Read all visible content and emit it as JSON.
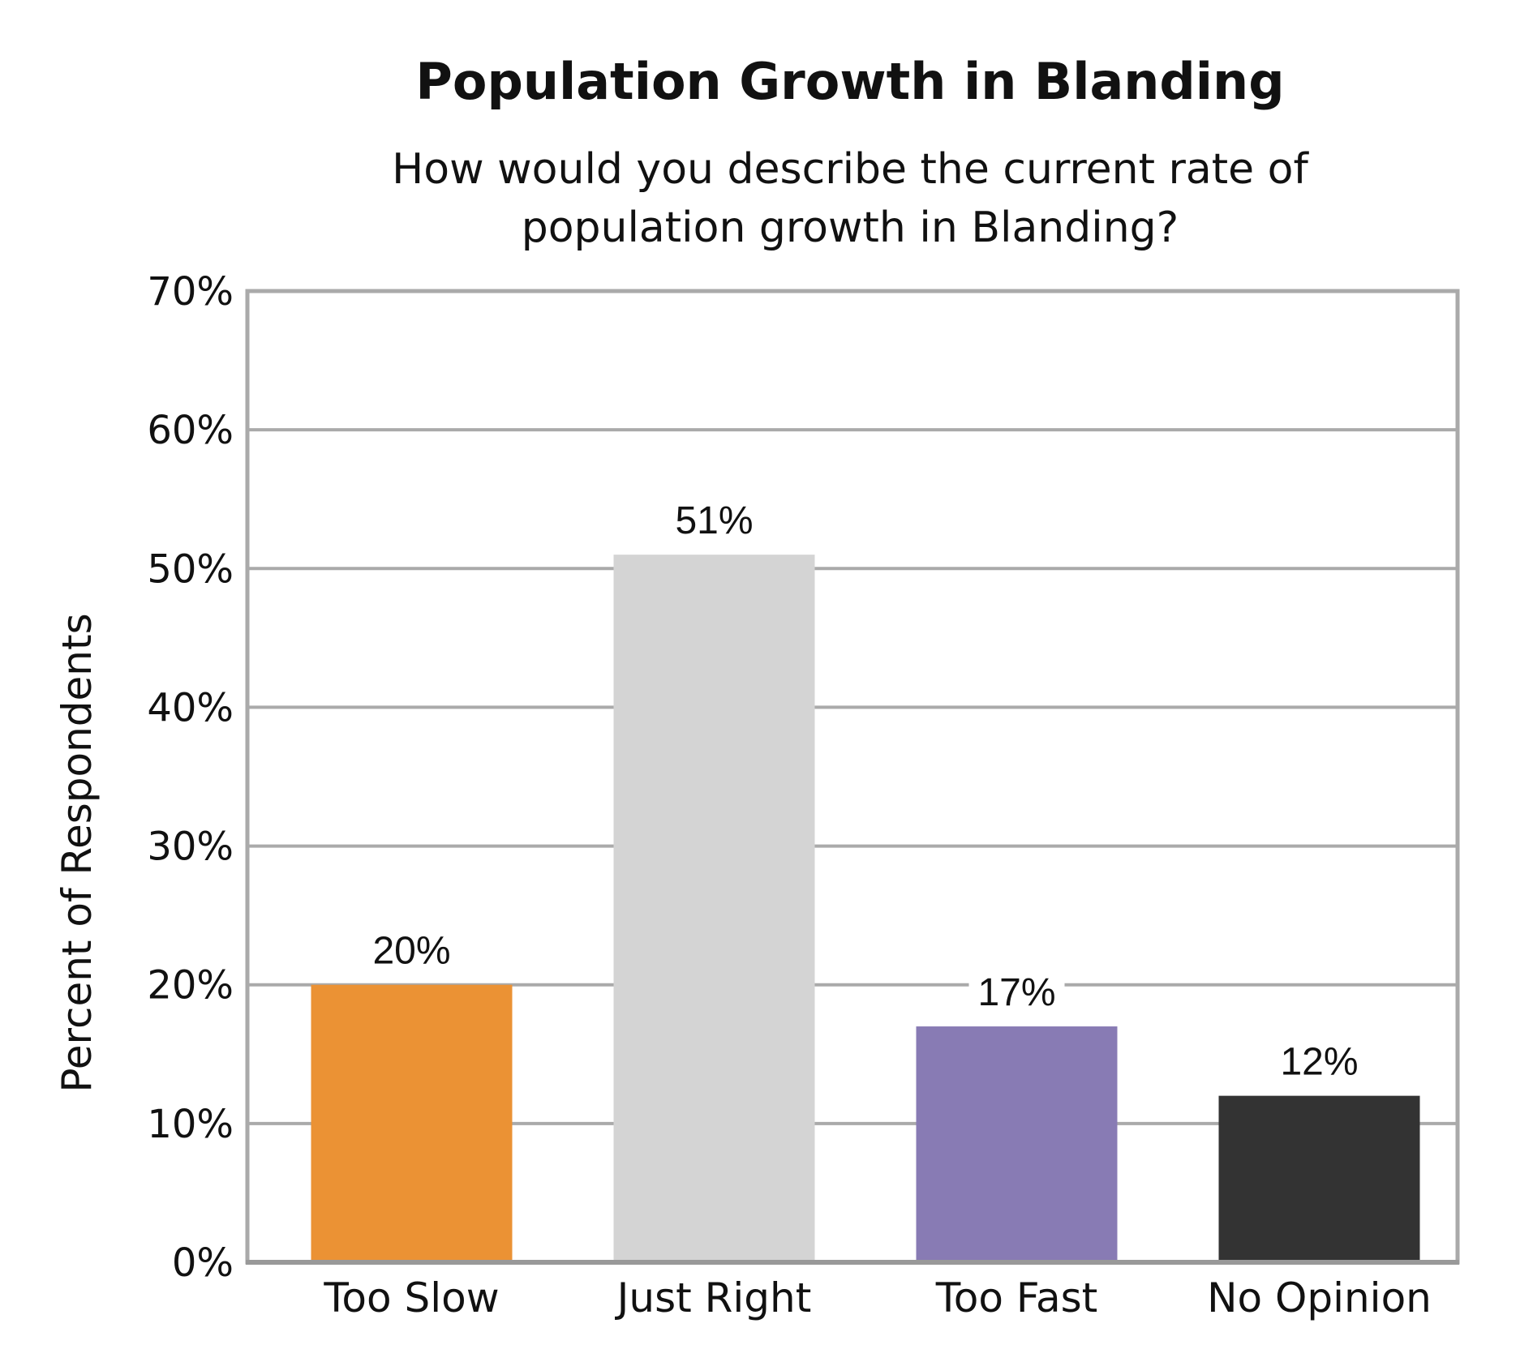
{
  "chart_data": {
    "type": "bar",
    "title": "Population Growth in Blanding",
    "subtitle_lines": [
      "How would you describe the current rate of",
      "population growth in Blanding?"
    ],
    "xlabel": "",
    "ylabel": "Percent of Respondents",
    "categories": [
      "Too Slow",
      "Just Right",
      "Too Fast",
      "No Opinion"
    ],
    "values": [
      20,
      51,
      17,
      12
    ],
    "value_labels": [
      "20%",
      "51%",
      "17%",
      "12%"
    ],
    "bar_colors": [
      "#EB9234",
      "#D4D4D4",
      "#887BB4",
      "#333333"
    ],
    "ylim": [
      0,
      70
    ],
    "yticks": [
      0,
      10,
      20,
      30,
      40,
      50,
      60,
      70
    ],
    "ytick_labels": [
      "0%",
      "10%",
      "20%",
      "30%",
      "40%",
      "50%",
      "60%",
      "70%"
    ],
    "grid": true,
    "legend": "none",
    "frame_color": "#AAAAAA",
    "grid_color": "#AAAAAA",
    "axis_color": "#999999"
  }
}
